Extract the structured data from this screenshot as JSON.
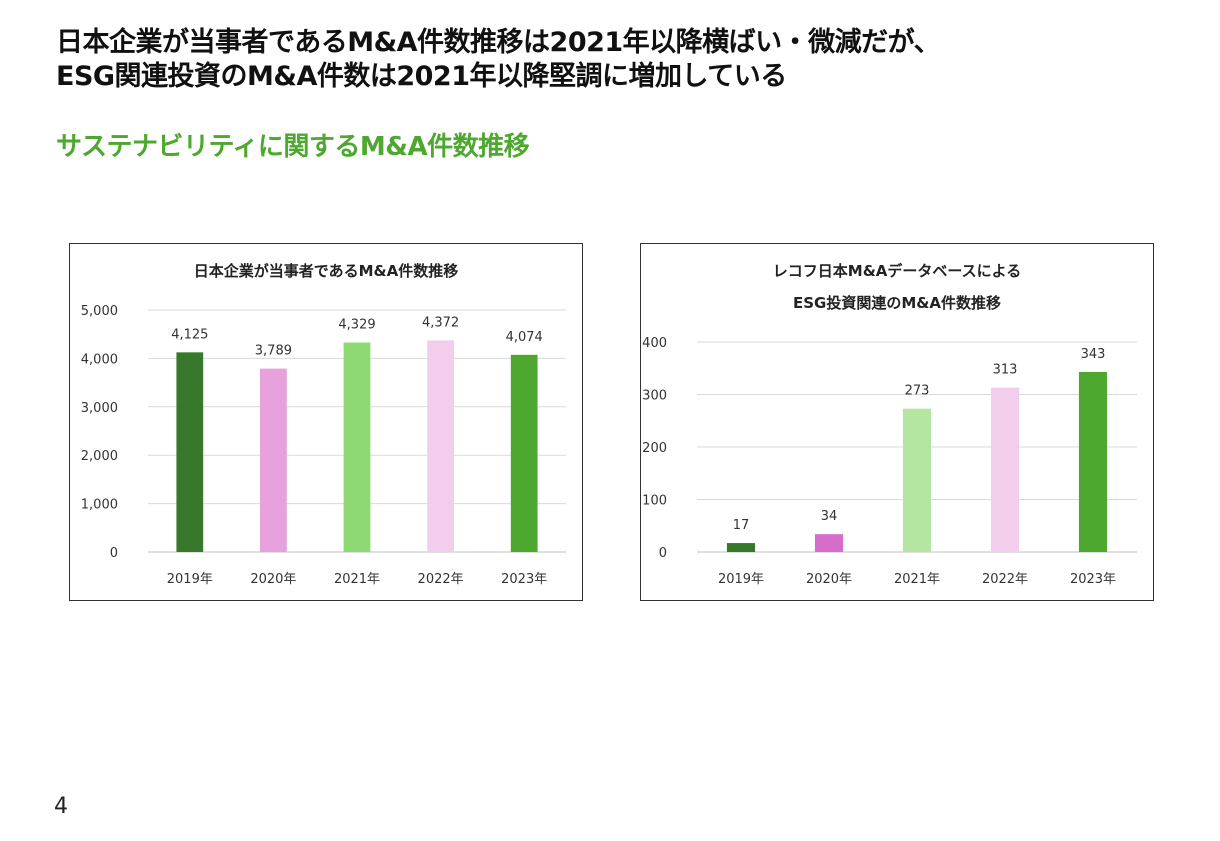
{
  "headline": {
    "line1": "日本企業が当事者であるM&A件数推移は2021年以降横ばい・微減だが、",
    "line2": "ESG関連投資のM&A件数は2021年以降堅調に増加している"
  },
  "subtitle": "サステナビリティに関するM&A件数推移",
  "page_number": "4",
  "chart_data": [
    {
      "type": "bar",
      "title": [
        "日本企業が当事者であるM&A件数推移"
      ],
      "categories": [
        "2019年",
        "2020年",
        "2021年",
        "2022年",
        "2023年"
      ],
      "values": [
        4125,
        3789,
        4329,
        4372,
        4074
      ],
      "value_labels": [
        "4,125",
        "3,789",
        "4,329",
        "4,372",
        "4,074"
      ],
      "colors": [
        "#38782a",
        "#e7a1dc",
        "#8ed973",
        "#f2cdec",
        "#4ea72e"
      ],
      "ylim": [
        0,
        5000
      ],
      "yticks": [
        0,
        1000,
        2000,
        3000,
        4000,
        5000
      ],
      "ytick_labels": [
        "0",
        "1,000",
        "2,000",
        "3,000",
        "4,000",
        "5,000"
      ],
      "grid": true,
      "legend": "none"
    },
    {
      "type": "bar",
      "title": [
        "レコフ日本M&Aデータベースによる",
        "ESG投資関連のM&A件数推移"
      ],
      "categories": [
        "2019年",
        "2020年",
        "2021年",
        "2022年",
        "2023年"
      ],
      "values": [
        17,
        34,
        273,
        313,
        343
      ],
      "value_labels": [
        "17",
        "34",
        "273",
        "313",
        "343"
      ],
      "colors": [
        "#38782a",
        "#d76dcb",
        "#b4e6a1",
        "#f2cdec",
        "#4ea72e"
      ],
      "ylim": [
        0,
        400
      ],
      "yticks": [
        0,
        100,
        200,
        300,
        400
      ],
      "ytick_labels": [
        "0",
        "100",
        "200",
        "300",
        "400"
      ],
      "grid": true,
      "legend": "none"
    }
  ]
}
